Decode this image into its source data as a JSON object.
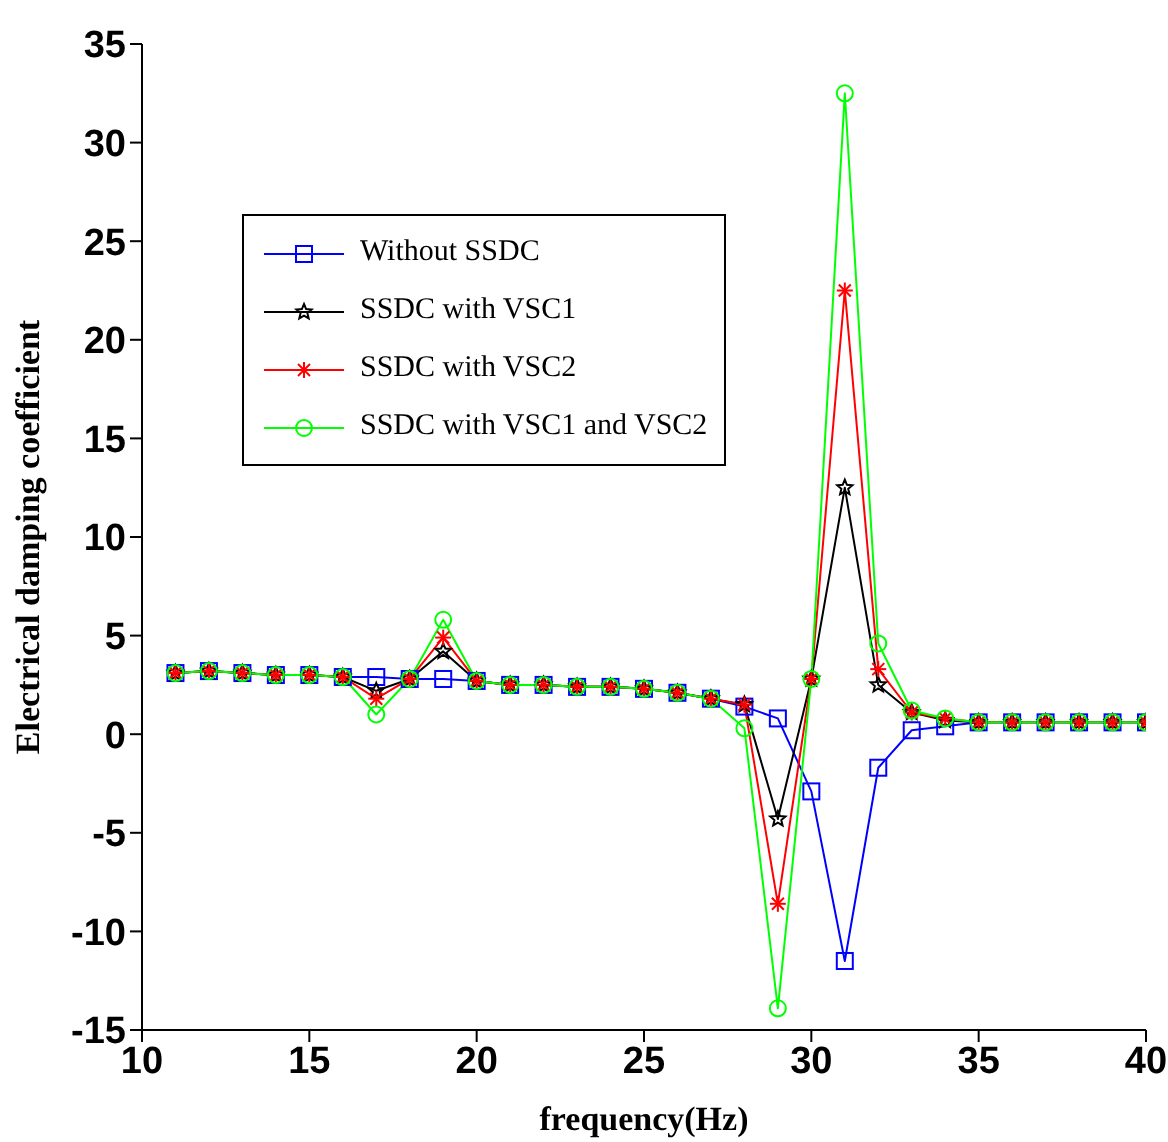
{
  "chart_data": {
    "type": "line",
    "xlabel": "frequency(Hz)",
    "ylabel": "Electrical damping coefficient",
    "x": [
      11,
      12,
      13,
      14,
      15,
      16,
      17,
      18,
      19,
      20,
      21,
      22,
      23,
      24,
      25,
      26,
      27,
      28,
      29,
      30,
      31,
      32,
      33,
      34,
      35,
      36,
      37,
      38,
      39,
      40
    ],
    "series": [
      {
        "name": "Without SSDC",
        "color": "#0000ff",
        "marker": "square",
        "values": [
          3.1,
          3.2,
          3.1,
          3.0,
          3.0,
          2.9,
          2.9,
          2.8,
          2.8,
          2.7,
          2.5,
          2.5,
          2.4,
          2.4,
          2.3,
          2.1,
          1.8,
          1.4,
          0.8,
          -2.9,
          -11.5,
          -1.7,
          0.2,
          0.4,
          0.6,
          0.6,
          0.6,
          0.6,
          0.6,
          0.6
        ]
      },
      {
        "name": "SSDC with VSC1",
        "color": "#000000",
        "marker": "star",
        "values": [
          3.1,
          3.2,
          3.1,
          3.0,
          3.0,
          2.9,
          2.2,
          2.8,
          4.2,
          2.7,
          2.5,
          2.5,
          2.4,
          2.4,
          2.3,
          2.1,
          1.8,
          1.5,
          -4.3,
          2.8,
          12.5,
          2.5,
          1.1,
          0.7,
          0.6,
          0.6,
          0.6,
          0.6,
          0.6,
          0.6
        ]
      },
      {
        "name": "SSDC with VSC2",
        "color": "#ff0000",
        "marker": "cross",
        "values": [
          3.1,
          3.2,
          3.1,
          3.0,
          3.0,
          2.9,
          1.8,
          2.8,
          4.9,
          2.7,
          2.5,
          2.5,
          2.4,
          2.4,
          2.3,
          2.1,
          1.8,
          1.5,
          -8.6,
          2.8,
          22.5,
          3.3,
          1.1,
          0.8,
          0.6,
          0.6,
          0.6,
          0.6,
          0.6,
          0.6
        ]
      },
      {
        "name": "SSDC with VSC1 and VSC2",
        "color": "#00ff00",
        "marker": "circle",
        "values": [
          3.1,
          3.2,
          3.1,
          3.0,
          3.0,
          2.9,
          1.0,
          2.8,
          5.8,
          2.7,
          2.5,
          2.5,
          2.4,
          2.4,
          2.3,
          2.1,
          1.8,
          0.3,
          -13.9,
          2.8,
          32.5,
          4.6,
          1.2,
          0.8,
          0.6,
          0.6,
          0.6,
          0.6,
          0.6,
          0.6
        ]
      }
    ],
    "xlim": [
      10,
      40
    ],
    "xticks": [
      10,
      15,
      20,
      25,
      30,
      35,
      40
    ],
    "ylim": [
      -15,
      35
    ],
    "yticks": [
      -15,
      -10,
      -5,
      0,
      5,
      10,
      15,
      20,
      25,
      30,
      35
    ],
    "grid": false,
    "legend": "top left",
    "line_style": "solid"
  }
}
